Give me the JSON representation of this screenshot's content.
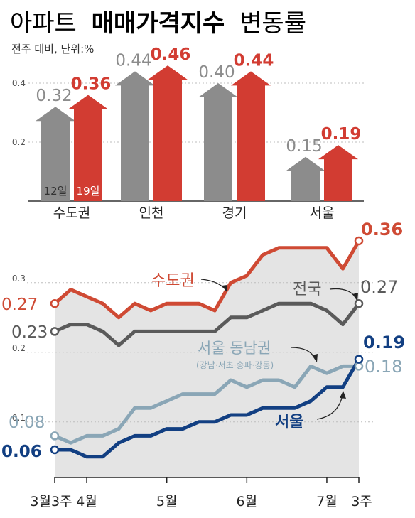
{
  "title_light": "아파트",
  "title_bold": "매매가격지수",
  "title_end": "변동률",
  "subtitle": "전주 대비, 단위:%",
  "colors": {
    "gray": "#8c8c8c",
    "red": "#d23c32",
    "metro_line": "#cf4a34",
    "national_line": "#5a5a5a",
    "gangnam_line": "#8aa6b6",
    "seoul_line": "#123f82",
    "area_fill": "#e4e4e4"
  },
  "chart_data": [
    {
      "type": "bar",
      "categories": [
        "수도권",
        "인천",
        "경기",
        "서울"
      ],
      "series": [
        {
          "name": "12일",
          "values": [
            0.32,
            0.44,
            0.4,
            0.15
          ],
          "color": "#8c8c8c"
        },
        {
          "name": "19일",
          "values": [
            0.36,
            0.46,
            0.44,
            0.19
          ],
          "color": "#d23c32"
        }
      ],
      "value_labels_gray": [
        "0.32",
        "0.44",
        "0.40",
        "0.15"
      ],
      "value_labels_red": [
        "0.36",
        "0.46",
        "0.44",
        "0.19"
      ],
      "yticks": [
        "0.4",
        "0.2"
      ],
      "ytick_values": [
        0.4,
        0.2
      ],
      "ylim": [
        0,
        0.5
      ]
    },
    {
      "type": "line",
      "x_ticks": [
        "3월3주",
        "4월",
        "5월",
        "6월",
        "7월",
        "3주"
      ],
      "x_tick_index": [
        0,
        2,
        7,
        12,
        17,
        19
      ],
      "yticks": [
        "0.3",
        "0.2",
        "0.1"
      ],
      "ytick_values": [
        0.3,
        0.2,
        0.1
      ],
      "ylim": [
        0,
        0.4
      ],
      "area_series": "수도권",
      "series": [
        {
          "name": "수도권",
          "color": "#cf4a34",
          "values": [
            0.27,
            0.29,
            0.28,
            0.27,
            0.25,
            0.27,
            0.26,
            0.27,
            0.27,
            0.27,
            0.26,
            0.3,
            0.31,
            0.34,
            0.35,
            0.35,
            0.35,
            0.35,
            0.32,
            0.36
          ],
          "start_label": "0.27",
          "end_label": "0.36",
          "label": "수도권"
        },
        {
          "name": "전국",
          "color": "#5a5a5a",
          "values": [
            0.23,
            0.24,
            0.24,
            0.23,
            0.21,
            0.23,
            0.23,
            0.23,
            0.23,
            0.23,
            0.23,
            0.25,
            0.25,
            0.26,
            0.27,
            0.27,
            0.27,
            0.26,
            0.24,
            0.27
          ],
          "start_label": "0.23",
          "end_label": "0.27",
          "label": "전국"
        },
        {
          "name": "서울 동남권",
          "color": "#8aa6b6",
          "values": [
            0.08,
            0.07,
            0.08,
            0.08,
            0.09,
            0.12,
            0.12,
            0.13,
            0.14,
            0.14,
            0.14,
            0.16,
            0.15,
            0.16,
            0.16,
            0.15,
            0.18,
            0.17,
            0.18,
            0.18
          ],
          "start_label": "0.08",
          "end_label": "0.18",
          "label": "서울 동남권",
          "sublabel": "(강남·서초·송파·강동)"
        },
        {
          "name": "서울",
          "color": "#123f82",
          "values": [
            0.06,
            0.06,
            0.05,
            0.05,
            0.07,
            0.08,
            0.08,
            0.09,
            0.09,
            0.1,
            0.1,
            0.11,
            0.11,
            0.12,
            0.12,
            0.12,
            0.13,
            0.15,
            0.15,
            0.19
          ],
          "start_label": "0.06",
          "end_label": "0.19",
          "label": "서울"
        }
      ]
    }
  ]
}
